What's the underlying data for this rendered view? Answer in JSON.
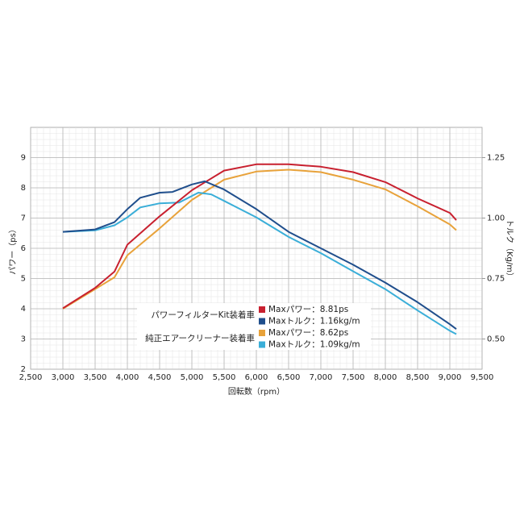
{
  "chart_data": {
    "type": "line",
    "xlabel": "回転数（rpm）",
    "ylabel": "パワー（ps）",
    "y2label": "トルク（Kg/m）",
    "xlim": [
      2500,
      9500
    ],
    "xticks": [
      {
        "value": 2500,
        "label": "2,500"
      },
      {
        "value": 3000,
        "label": "3,000"
      },
      {
        "value": 3500,
        "label": "3,500"
      },
      {
        "value": 4000,
        "label": "4,000"
      },
      {
        "value": 4500,
        "label": "4,500"
      },
      {
        "value": 5000,
        "label": "5,000"
      },
      {
        "value": 5500,
        "label": "5,500"
      },
      {
        "value": 6000,
        "label": "6,000"
      },
      {
        "value": 6500,
        "label": "6,500"
      },
      {
        "value": 7000,
        "label": "7,000"
      },
      {
        "value": 7500,
        "label": "7,500"
      },
      {
        "value": 8000,
        "label": "8,000"
      },
      {
        "value": 8500,
        "label": "8,500"
      },
      {
        "value": 9000,
        "label": "9,000"
      },
      {
        "value": 9500,
        "label": "9,500"
      }
    ],
    "ylim": [
      2,
      10
    ],
    "yticks": [
      2,
      3,
      4,
      5,
      6,
      7,
      8,
      9
    ],
    "y2lim": [
      0.375,
      1.375
    ],
    "y2ticks": [
      {
        "value": 0.5,
        "label": "0.50"
      },
      {
        "value": 0.75,
        "label": "0.75"
      },
      {
        "value": 1.0,
        "label": "1.00"
      },
      {
        "value": 1.25,
        "label": "1.25"
      }
    ],
    "grid": true,
    "legend_groups": [
      {
        "label": "パワーフィルターKit装着車",
        "series": [
          0,
          1
        ]
      },
      {
        "label": "純正エアークリーナー装着車",
        "series": [
          2,
          3
        ]
      }
    ],
    "series": [
      {
        "name": "Maxパワー：8.81ps",
        "color": "#c8202f",
        "axis": "y",
        "x": [
          3000,
          3500,
          3800,
          4000,
          4500,
          5000,
          5500,
          6000,
          6500,
          7000,
          7500,
          8000,
          8500,
          9000,
          9100
        ],
        "values": [
          4.02,
          4.69,
          5.23,
          6.12,
          7.06,
          7.92,
          8.57,
          8.78,
          8.78,
          8.7,
          8.52,
          8.19,
          7.65,
          7.17,
          6.93
        ]
      },
      {
        "name": "Maxトルク：1.16kg/m",
        "color": "#1f4e8c",
        "axis": "y2",
        "x": [
          3000,
          3500,
          3800,
          4000,
          4200,
          4500,
          4700,
          5000,
          5200,
          5500,
          6000,
          6500,
          7000,
          7500,
          8000,
          8500,
          9000,
          9100
        ],
        "values": [
          0.943,
          0.953,
          0.983,
          1.037,
          1.084,
          1.105,
          1.108,
          1.139,
          1.152,
          1.118,
          1.037,
          0.943,
          0.875,
          0.807,
          0.733,
          0.652,
          0.561,
          0.541
        ]
      },
      {
        "name": "Maxパワー：8.62ps",
        "color": "#e8a23a",
        "axis": "y",
        "x": [
          3000,
          3500,
          3800,
          4000,
          4500,
          5000,
          5500,
          6000,
          6500,
          7000,
          7500,
          8000,
          8500,
          9000,
          9100
        ],
        "values": [
          4.0,
          4.65,
          5.04,
          5.77,
          6.66,
          7.6,
          8.27,
          8.54,
          8.6,
          8.52,
          8.27,
          7.95,
          7.39,
          6.79,
          6.6
        ]
      },
      {
        "name": "Maxトルク：1.09kg/m",
        "color": "#3aaed8",
        "axis": "y2",
        "x": [
          3000,
          3500,
          3800,
          4000,
          4200,
          4500,
          4800,
          5100,
          5300,
          5500,
          6000,
          6500,
          7000,
          7500,
          8000,
          8500,
          9000,
          9100
        ],
        "values": [
          0.943,
          0.949,
          0.97,
          1.003,
          1.044,
          1.061,
          1.064,
          1.105,
          1.098,
          1.071,
          1.003,
          0.922,
          0.855,
          0.78,
          0.706,
          0.618,
          0.534,
          0.52
        ]
      }
    ]
  }
}
